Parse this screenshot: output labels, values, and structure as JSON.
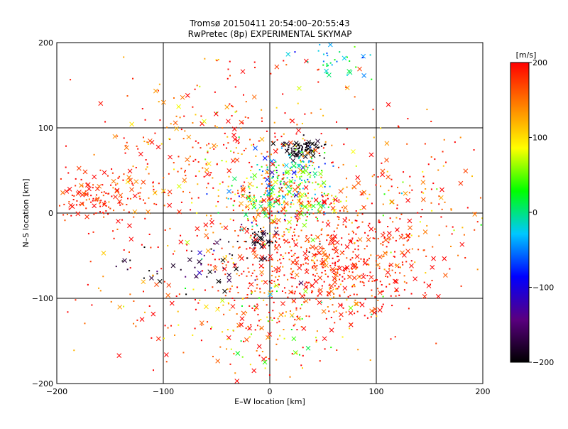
{
  "chart_data": {
    "type": "scatter",
    "title": "Tromsø 20150411 20:54:00–20:55:43",
    "subtitle": "RwPretec (8p) EXPERIMENTAL SKYMAP",
    "xlabel": "E–W location [km]",
    "ylabel": "N–S location [km]",
    "xlim": [
      -200,
      200
    ],
    "ylim": [
      -200,
      200
    ],
    "xticks": [
      -200,
      -100,
      0,
      100,
      200
    ],
    "yticks": [
      -200,
      -100,
      0,
      100,
      200
    ],
    "x_tick_labels": [
      "−200",
      "−100",
      "0",
      "100",
      "200"
    ],
    "y_tick_labels": [
      "−200",
      "−100",
      "0",
      "100",
      "200"
    ],
    "grid": true,
    "markers": [
      "dot",
      "x"
    ],
    "colorbar": {
      "label": "[m/s]",
      "range": [
        -200,
        200
      ],
      "ticks": [
        200,
        100,
        0,
        -100,
        -200
      ],
      "tick_labels": [
        "200",
        "100",
        "0",
        "−100",
        "−200"
      ],
      "colormap": [
        "#000000",
        "#5a0080",
        "#0000ff",
        "#00c8ff",
        "#00ff00",
        "#ffff00",
        "#ff8000",
        "#ff0000"
      ]
    },
    "series": [
      {
        "clusters": [
          {
            "x": 30,
            "y": 75,
            "sx": 10,
            "sy": 5,
            "n": 90,
            "v": -195,
            "sv": 10
          },
          {
            "x": 25,
            "y": 50,
            "sx": 15,
            "sy": 12,
            "n": 120,
            "v": 0,
            "sv": 60
          },
          {
            "x": 10,
            "y": 15,
            "sx": 25,
            "sy": 15,
            "n": 250,
            "v": 60,
            "sv": 80
          },
          {
            "x": -5,
            "y": -30,
            "sx": 8,
            "sy": 6,
            "n": 40,
            "v": -195,
            "sv": 10
          },
          {
            "x": 60,
            "y": -60,
            "sx": 50,
            "sy": 35,
            "n": 600,
            "v": 185,
            "sv": 30
          },
          {
            "x": -160,
            "y": 20,
            "sx": 25,
            "sy": 15,
            "n": 150,
            "v": 185,
            "sv": 30
          },
          {
            "x": -40,
            "y": 60,
            "sx": 60,
            "sy": 60,
            "n": 400,
            "v": 170,
            "sv": 50
          },
          {
            "x": 60,
            "y": 180,
            "sx": 15,
            "sy": 15,
            "n": 40,
            "v": -10,
            "sv": 30
          },
          {
            "x": 0,
            "y": -120,
            "sx": 40,
            "sy": 40,
            "n": 200,
            "v": 150,
            "sv": 70
          },
          {
            "x": -60,
            "y": -60,
            "sx": 40,
            "sy": 20,
            "n": 60,
            "v": -180,
            "sv": 30
          },
          {
            "x": 120,
            "y": 20,
            "sx": 60,
            "sy": 50,
            "n": 200,
            "v": 170,
            "sv": 60
          },
          {
            "x": -100,
            "y": -100,
            "sx": 50,
            "sy": 50,
            "n": 80,
            "v": 170,
            "sv": 50
          }
        ]
      }
    ]
  }
}
